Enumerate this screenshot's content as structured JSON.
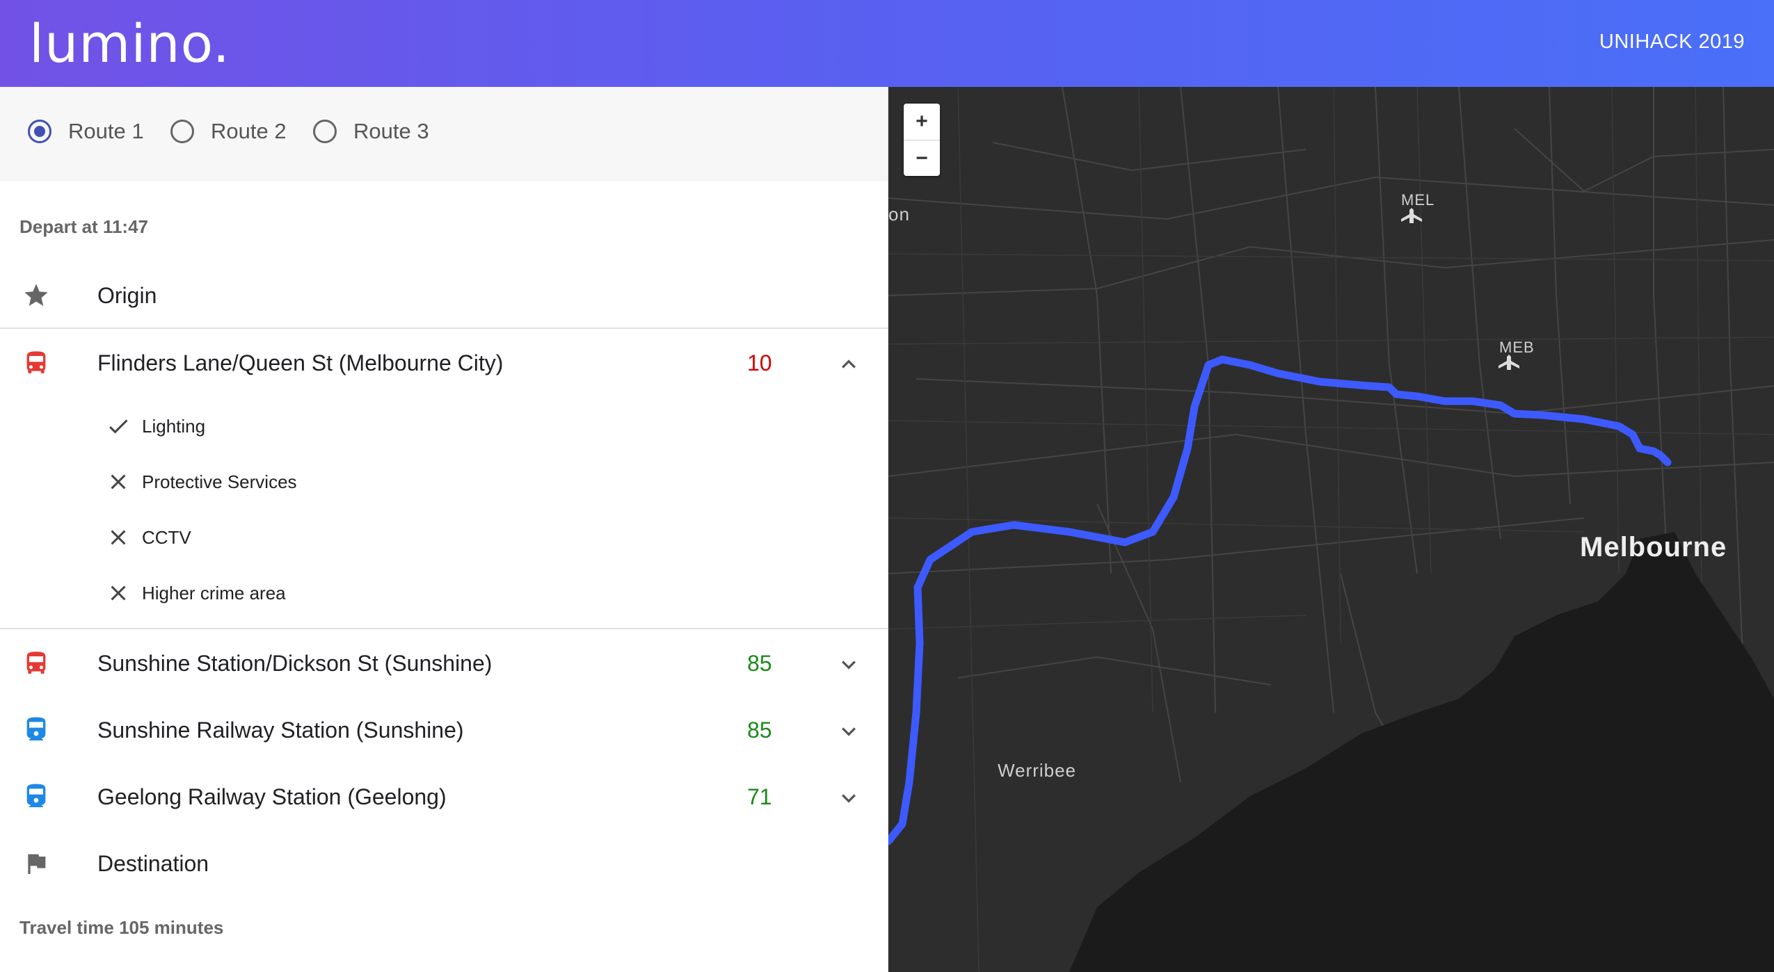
{
  "header": {
    "logo": "lumino.",
    "event": "UNIHACK 2019"
  },
  "routes": [
    {
      "label": "Route 1",
      "selected": true
    },
    {
      "label": "Route 2",
      "selected": false
    },
    {
      "label": "Route 3",
      "selected": false
    }
  ],
  "depart": "Depart at 11:47",
  "origin": {
    "label": "Origin",
    "icon": "star-icon"
  },
  "stops": [
    {
      "label": "Flinders Lane/Queen St (Melbourne City)",
      "score": "10",
      "score_color": "#d50000",
      "icon": "bus-icon",
      "expanded": true,
      "factors": [
        {
          "label": "Lighting",
          "ok": true
        },
        {
          "label": "Protective Services",
          "ok": false
        },
        {
          "label": "CCTV",
          "ok": false
        },
        {
          "label": "Higher crime area",
          "ok": false
        }
      ]
    },
    {
      "label": "Sunshine Station/Dickson St (Sunshine)",
      "score": "85",
      "score_color": "#1b8a1b",
      "icon": "bus-icon",
      "expanded": false
    },
    {
      "label": "Sunshine Railway Station (Sunshine)",
      "score": "85",
      "score_color": "#1b8a1b",
      "icon": "train-icon",
      "expanded": false
    },
    {
      "label": "Geelong Railway Station (Geelong)",
      "score": "71",
      "score_color": "#1b8a1b",
      "icon": "train-icon",
      "expanded": false
    }
  ],
  "destination": {
    "label": "Destination",
    "icon": "flag-icon"
  },
  "travel_time": "Travel time 105 minutes",
  "map": {
    "zoom_in": "+",
    "zoom_out": "−",
    "labels": {
      "mel": "MEL",
      "meb": "MEB",
      "werribee": "Werribee",
      "melbourne": "Melbourne",
      "edge": "on"
    },
    "route_color": "#3d5afe"
  }
}
